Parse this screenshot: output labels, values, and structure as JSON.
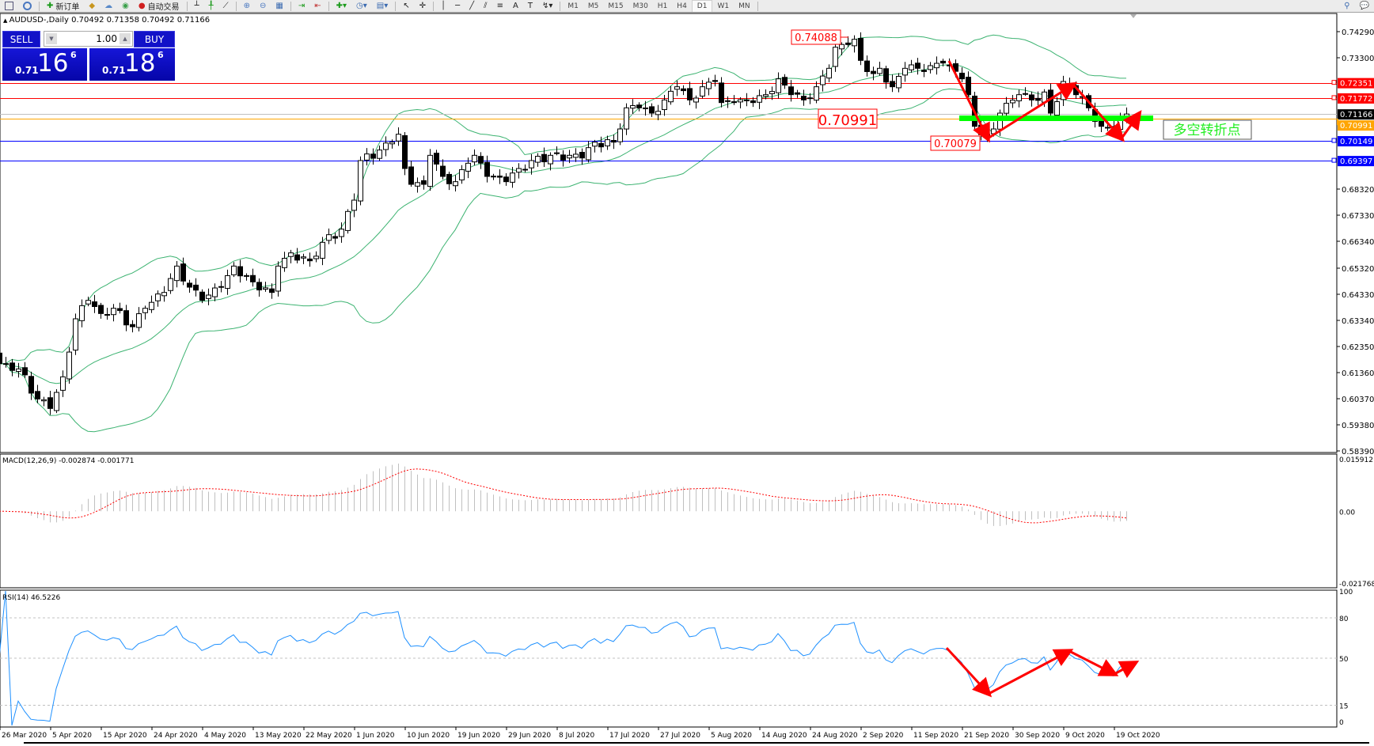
{
  "toolbar": {
    "new_order_label": "新订单",
    "auto_trading_label": "自动交易",
    "timeframes": [
      "M1",
      "M5",
      "M15",
      "M30",
      "H1",
      "H4",
      "D1",
      "W1",
      "MN"
    ],
    "active_timeframe": "D1"
  },
  "chart": {
    "header": "AUDUSD-,Daily  0.70492 0.71358 0.70492 0.71166",
    "trade_panel": {
      "sell_label": "SELL",
      "buy_label": "BUY",
      "lot_value": "1.00",
      "sell_price": {
        "prefix": "0.71",
        "big": "16",
        "sup": "6"
      },
      "buy_price": {
        "prefix": "0.71",
        "big": "18",
        "sup": "6"
      }
    },
    "price_axis_labels": [
      "0.74290",
      "0.73300",
      "0.68320",
      "0.67330",
      "0.66340",
      "0.65320",
      "0.64330",
      "0.63340",
      "0.62350",
      "0.61360",
      "0.60370",
      "0.59380",
      "0.58390"
    ],
    "date_labels": [
      "26 Mar 2020",
      "5 Apr 2020",
      "15 Apr 2020",
      "24 Apr 2020",
      "4 May 2020",
      "13 May 2020",
      "22 May 2020",
      "1 Jun 2020",
      "10 Jun 2020",
      "19 Jun 2020",
      "29 Jun 2020",
      "8 Jul 2020",
      "17 Jul 2020",
      "27 Jul 2020",
      "5 Aug 2020",
      "14 Aug 2020",
      "24 Aug 2020",
      "2 Sep 2020",
      "11 Sep 2020",
      "21 Sep 2020",
      "30 Sep 2020",
      "9 Oct 2020",
      "19 Oct 2020"
    ],
    "horizontal_lines": [
      {
        "price": 0.72351,
        "label": "0.72351",
        "color": "#ff0000"
      },
      {
        "price": 0.71772,
        "label": "0.71772",
        "color": "#ff0000"
      },
      {
        "price": 0.71166,
        "label": "0.71166",
        "color": "#c0c0c0",
        "label_bg": "#000000"
      },
      {
        "price": 0.70991,
        "label": "0.70991",
        "color": "#ffa500"
      },
      {
        "price": 0.70149,
        "label": "0.70149",
        "color": "#0000ff"
      },
      {
        "price": 0.69397,
        "label": "0.69397",
        "color": "#0000ff"
      }
    ],
    "annotations": {
      "high_label": "0.74088",
      "pivot_label": "0.70991",
      "low_label": "0.70079",
      "pivot_text": "多空转折点"
    }
  },
  "macd": {
    "header": "MACD(12,26,9) -0.002874 -0.001771",
    "axis_labels": [
      "0.015912",
      "0.00",
      "-0.021768"
    ],
    "max": 0.015912,
    "min": -0.021768
  },
  "rsi": {
    "header": "RSI(14) 46.5226",
    "axis_labels": [
      "100",
      "80",
      "50",
      "15",
      "0"
    ],
    "levels": [
      80,
      50,
      15
    ]
  },
  "colors": {
    "candle": "#000000",
    "bands": "#3cb371",
    "annotation": "#ff0000",
    "pivot_zone": "#00ff00",
    "macd_hist": "#c0c0c0",
    "macd_signal": "#ff0000",
    "rsi_line": "#1e90ff",
    "trade_panel": "#1212c8"
  },
  "chart_data": {
    "type": "candlestick",
    "symbol": "AUDUSD",
    "timeframe": "Daily",
    "ylim": [
      0.5839,
      0.7429
    ],
    "close_anchors": [
      [
        1,
        0.617
      ],
      [
        3,
        0.615
      ],
      [
        6,
        0.6036
      ],
      [
        8,
        0.6
      ],
      [
        10,
        0.612
      ],
      [
        12,
        0.634
      ],
      [
        14,
        0.641
      ],
      [
        16,
        0.636
      ],
      [
        18,
        0.638
      ],
      [
        21,
        0.631
      ],
      [
        23,
        0.638
      ],
      [
        26,
        0.644
      ],
      [
        28,
        0.654
      ],
      [
        30,
        0.646
      ],
      [
        32,
        0.641
      ],
      [
        35,
        0.646
      ],
      [
        37,
        0.654
      ],
      [
        40,
        0.648
      ],
      [
        43,
        0.644
      ],
      [
        44,
        0.654
      ],
      [
        46,
        0.659
      ],
      [
        49,
        0.656
      ],
      [
        51,
        0.663
      ],
      [
        54,
        0.668
      ],
      [
        56,
        0.679
      ],
      [
        57,
        0.694
      ],
      [
        60,
        0.698
      ],
      [
        62,
        0.701
      ],
      [
        63,
        0.704
      ],
      [
        64,
        0.691
      ],
      [
        65,
        0.685
      ],
      [
        67,
        0.685
      ],
      [
        68,
        0.696
      ],
      [
        70,
        0.688
      ],
      [
        72,
        0.686
      ],
      [
        74,
        0.693
      ],
      [
        75,
        0.696
      ],
      [
        77,
        0.688
      ],
      [
        80,
        0.686
      ],
      [
        82,
        0.691
      ],
      [
        84,
        0.694
      ],
      [
        87,
        0.696
      ],
      [
        90,
        0.696
      ],
      [
        92,
        0.695
      ],
      [
        94,
        0.701
      ],
      [
        97,
        0.701
      ],
      [
        98,
        0.706
      ],
      [
        99,
        0.714
      ],
      [
        101,
        0.714
      ],
      [
        103,
        0.712
      ],
      [
        105,
        0.717
      ],
      [
        107,
        0.722
      ],
      [
        109,
        0.717
      ],
      [
        111,
        0.722
      ],
      [
        113,
        0.724
      ],
      [
        114,
        0.716
      ],
      [
        116,
        0.716
      ],
      [
        119,
        0.716
      ],
      [
        121,
        0.719
      ],
      [
        123,
        0.725
      ],
      [
        125,
        0.719
      ],
      [
        127,
        0.717
      ],
      [
        129,
        0.722
      ],
      [
        131,
        0.729
      ],
      [
        132,
        0.737
      ],
      [
        134,
        0.738
      ],
      [
        135,
        0.74
      ],
      [
        136,
        0.732
      ],
      [
        138,
        0.727
      ],
      [
        139,
        0.729
      ],
      [
        141,
        0.722
      ],
      [
        143,
        0.729
      ],
      [
        145,
        0.729
      ],
      [
        147,
        0.73
      ],
      [
        149,
        0.731
      ],
      [
        150,
        0.73
      ],
      [
        152,
        0.725
      ],
      [
        153,
        0.719
      ],
      [
        154,
        0.707
      ],
      [
        156,
        0.704
      ],
      [
        157,
        0.706
      ],
      [
        158,
        0.712
      ],
      [
        161,
        0.719
      ],
      [
        163,
        0.717
      ],
      [
        165,
        0.72
      ],
      [
        166,
        0.712
      ],
      [
        168,
        0.724
      ],
      [
        170,
        0.719
      ],
      [
        172,
        0.714
      ],
      [
        174,
        0.707
      ],
      [
        176,
        0.706
      ],
      [
        178,
        0.71166
      ]
    ]
  }
}
